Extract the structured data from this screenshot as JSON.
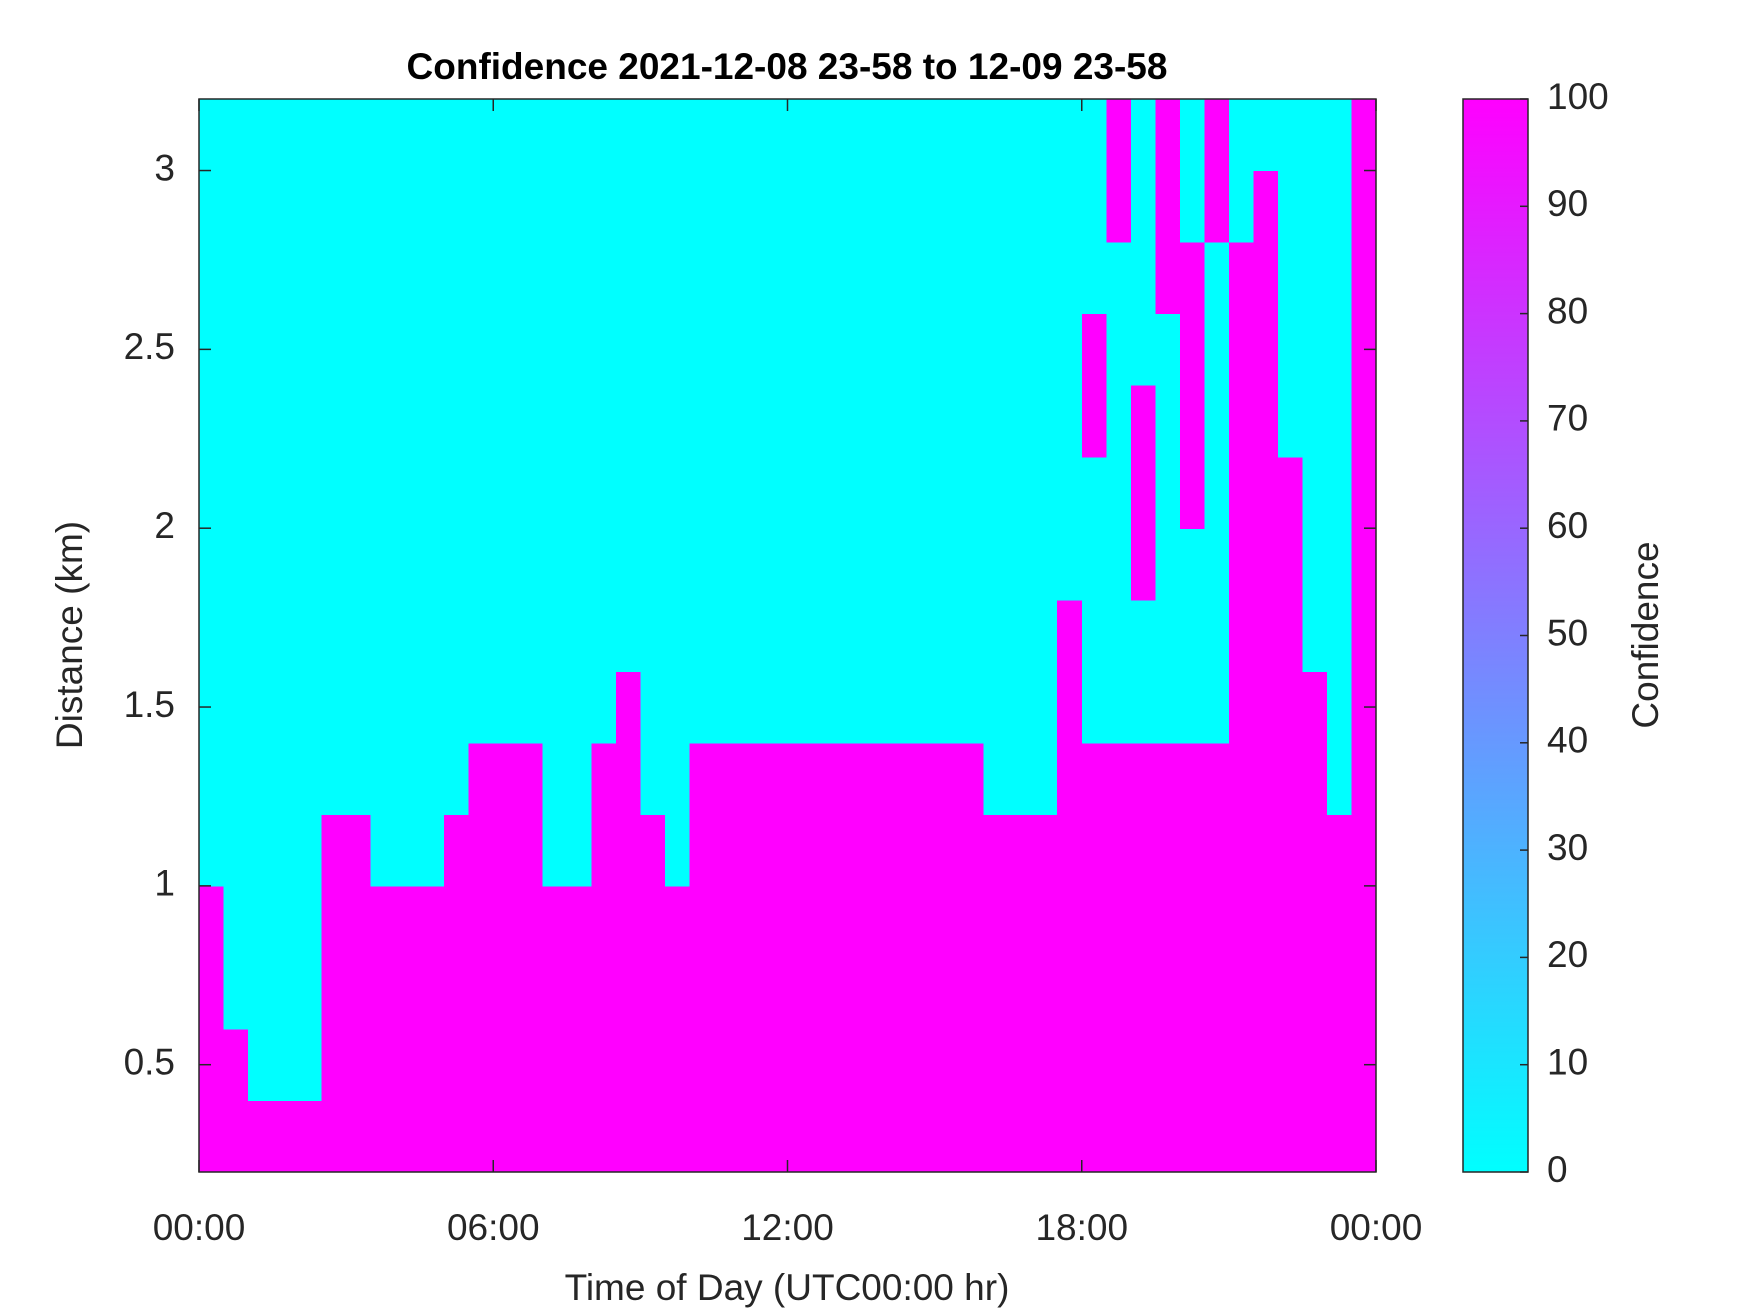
{
  "chart_data": {
    "type": "heatmap",
    "title": "Confidence 2021-12-08 23-58 to 12-09 23-58",
    "x_label": "Time of Day (UTC00:00 hr)",
    "y_label": "Distance (km)",
    "colorbar_label": "Confidence",
    "colormap": [
      "#00ffff",
      "#ff00ff"
    ],
    "clim": [
      0,
      100
    ],
    "cticks": [
      0,
      10,
      20,
      30,
      40,
      50,
      60,
      70,
      80,
      90,
      100
    ],
    "xlim": [
      0,
      24
    ],
    "xticks": [
      {
        "value": 0,
        "label": "00:00"
      },
      {
        "value": 6,
        "label": "06:00"
      },
      {
        "value": 12,
        "label": "12:00"
      },
      {
        "value": 18,
        "label": "18:00"
      },
      {
        "value": 24,
        "label": "00:00"
      }
    ],
    "ylim": [
      0.2,
      3.2
    ],
    "yticks": [
      0.5,
      1,
      1.5,
      2,
      2.5,
      3
    ],
    "x": [
      0.25,
      0.75,
      1.25,
      1.75,
      2.25,
      2.75,
      3.25,
      3.75,
      4.25,
      4.75,
      5.25,
      5.75,
      6.25,
      6.75,
      7.25,
      7.75,
      8.25,
      8.75,
      9.25,
      9.75,
      10.25,
      10.75,
      11.25,
      11.75,
      12.25,
      12.75,
      13.25,
      13.75,
      14.25,
      14.75,
      15.25,
      15.75,
      16.25,
      16.75,
      17.25,
      17.75,
      18.25,
      18.75,
      19.25,
      19.75,
      20.25,
      20.75,
      21.25,
      21.75,
      22.25,
      22.75,
      23.25,
      23.75
    ],
    "y": [
      0.3,
      0.5,
      0.7,
      0.9,
      1.1,
      1.3,
      1.5,
      1.7,
      1.9,
      2.1,
      2.3,
      2.5,
      2.7,
      2.9,
      3.1
    ],
    "z": [
      [
        100,
        100,
        100,
        100,
        100,
        100,
        100,
        100,
        100,
        100,
        100,
        100,
        100,
        100,
        100,
        100,
        100,
        100,
        100,
        100,
        100,
        100,
        100,
        100,
        100,
        100,
        100,
        100,
        100,
        100,
        100,
        100,
        100,
        100,
        100,
        100,
        100,
        100,
        100,
        100,
        100,
        100,
        100,
        100,
        100,
        100,
        100,
        100
      ],
      [
        100,
        100,
        0,
        0,
        0,
        100,
        100,
        100,
        100,
        100,
        100,
        100,
        100,
        100,
        100,
        100,
        100,
        100,
        100,
        100,
        100,
        100,
        100,
        100,
        100,
        100,
        100,
        100,
        100,
        100,
        100,
        100,
        100,
        100,
        100,
        100,
        100,
        100,
        100,
        100,
        100,
        100,
        100,
        100,
        100,
        100,
        100,
        100
      ],
      [
        100,
        0,
        0,
        0,
        0,
        100,
        100,
        100,
        100,
        100,
        100,
        100,
        100,
        100,
        100,
        100,
        100,
        100,
        100,
        100,
        100,
        100,
        100,
        100,
        100,
        100,
        100,
        100,
        100,
        100,
        100,
        100,
        100,
        100,
        100,
        100,
        100,
        100,
        100,
        100,
        100,
        100,
        100,
        100,
        100,
        100,
        100,
        100
      ],
      [
        100,
        0,
        0,
        0,
        0,
        100,
        100,
        100,
        100,
        100,
        100,
        100,
        100,
        100,
        100,
        100,
        100,
        100,
        100,
        100,
        100,
        100,
        100,
        100,
        100,
        100,
        100,
        100,
        100,
        100,
        100,
        100,
        100,
        100,
        100,
        100,
        100,
        100,
        100,
        100,
        100,
        100,
        100,
        100,
        100,
        100,
        100,
        100
      ],
      [
        0,
        0,
        0,
        0,
        0,
        100,
        100,
        0,
        0,
        0,
        100,
        100,
        100,
        100,
        0,
        0,
        100,
        100,
        100,
        0,
        100,
        100,
        100,
        100,
        100,
        100,
        100,
        100,
        100,
        100,
        100,
        100,
        100,
        100,
        100,
        100,
        100,
        100,
        100,
        100,
        100,
        100,
        100,
        100,
        100,
        100,
        100,
        100
      ],
      [
        0,
        0,
        0,
        0,
        0,
        0,
        0,
        0,
        0,
        0,
        0,
        100,
        100,
        100,
        0,
        0,
        100,
        100,
        0,
        0,
        100,
        100,
        100,
        100,
        100,
        100,
        100,
        100,
        100,
        100,
        100,
        100,
        0,
        0,
        0,
        100,
        100,
        100,
        100,
        100,
        100,
        100,
        100,
        100,
        100,
        100,
        0,
        100
      ],
      [
        0,
        0,
        0,
        0,
        0,
        0,
        0,
        0,
        0,
        0,
        0,
        0,
        0,
        0,
        0,
        0,
        0,
        100,
        0,
        0,
        0,
        0,
        0,
        0,
        0,
        0,
        0,
        0,
        0,
        0,
        0,
        0,
        0,
        0,
        0,
        100,
        0,
        0,
        0,
        0,
        0,
        0,
        100,
        100,
        100,
        100,
        0,
        100
      ],
      [
        0,
        0,
        0,
        0,
        0,
        0,
        0,
        0,
        0,
        0,
        0,
        0,
        0,
        0,
        0,
        0,
        0,
        0,
        0,
        0,
        0,
        0,
        0,
        0,
        0,
        0,
        0,
        0,
        0,
        0,
        0,
        0,
        0,
        0,
        0,
        100,
        0,
        0,
        0,
        0,
        0,
        0,
        100,
        100,
        100,
        0,
        0,
        100
      ],
      [
        0,
        0,
        0,
        0,
        0,
        0,
        0,
        0,
        0,
        0,
        0,
        0,
        0,
        0,
        0,
        0,
        0,
        0,
        0,
        0,
        0,
        0,
        0,
        0,
        0,
        0,
        0,
        0,
        0,
        0,
        0,
        0,
        0,
        0,
        0,
        0,
        0,
        0,
        100,
        0,
        0,
        0,
        100,
        100,
        100,
        0,
        0,
        100
      ],
      [
        0,
        0,
        0,
        0,
        0,
        0,
        0,
        0,
        0,
        0,
        0,
        0,
        0,
        0,
        0,
        0,
        0,
        0,
        0,
        0,
        0,
        0,
        0,
        0,
        0,
        0,
        0,
        0,
        0,
        0,
        0,
        0,
        0,
        0,
        0,
        0,
        0,
        0,
        100,
        0,
        100,
        0,
        100,
        100,
        100,
        0,
        0,
        100
      ],
      [
        0,
        0,
        0,
        0,
        0,
        0,
        0,
        0,
        0,
        0,
        0,
        0,
        0,
        0,
        0,
        0,
        0,
        0,
        0,
        0,
        0,
        0,
        0,
        0,
        0,
        0,
        0,
        0,
        0,
        0,
        0,
        0,
        0,
        0,
        0,
        0,
        100,
        0,
        100,
        0,
        100,
        0,
        100,
        100,
        0,
        0,
        0,
        100
      ],
      [
        0,
        0,
        0,
        0,
        0,
        0,
        0,
        0,
        0,
        0,
        0,
        0,
        0,
        0,
        0,
        0,
        0,
        0,
        0,
        0,
        0,
        0,
        0,
        0,
        0,
        0,
        0,
        0,
        0,
        0,
        0,
        0,
        0,
        0,
        0,
        0,
        100,
        0,
        0,
        0,
        100,
        0,
        100,
        100,
        0,
        0,
        0,
        100
      ],
      [
        0,
        0,
        0,
        0,
        0,
        0,
        0,
        0,
        0,
        0,
        0,
        0,
        0,
        0,
        0,
        0,
        0,
        0,
        0,
        0,
        0,
        0,
        0,
        0,
        0,
        0,
        0,
        0,
        0,
        0,
        0,
        0,
        0,
        0,
        0,
        0,
        0,
        0,
        0,
        100,
        100,
        0,
        100,
        100,
        0,
        0,
        0,
        100
      ],
      [
        0,
        0,
        0,
        0,
        0,
        0,
        0,
        0,
        0,
        0,
        0,
        0,
        0,
        0,
        0,
        0,
        0,
        0,
        0,
        0,
        0,
        0,
        0,
        0,
        0,
        0,
        0,
        0,
        0,
        0,
        0,
        0,
        0,
        0,
        0,
        0,
        0,
        100,
        0,
        100,
        0,
        100,
        0,
        100,
        0,
        0,
        0,
        100
      ],
      [
        0,
        0,
        0,
        0,
        0,
        0,
        0,
        0,
        0,
        0,
        0,
        0,
        0,
        0,
        0,
        0,
        0,
        0,
        0,
        0,
        0,
        0,
        0,
        0,
        0,
        0,
        0,
        0,
        0,
        0,
        0,
        0,
        0,
        0,
        0,
        0,
        0,
        100,
        0,
        100,
        0,
        100,
        0,
        0,
        0,
        0,
        0,
        100
      ]
    ]
  }
}
